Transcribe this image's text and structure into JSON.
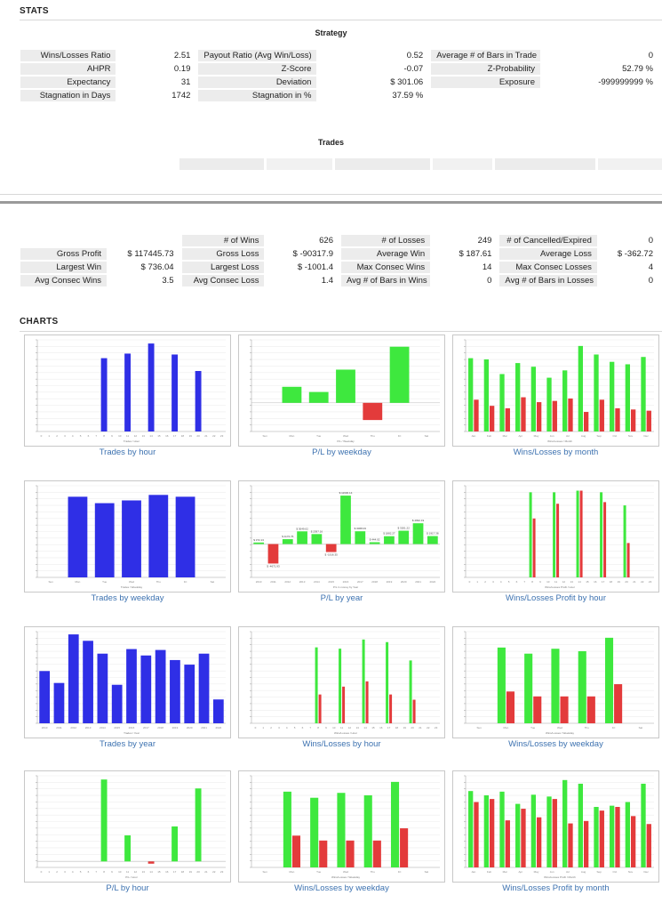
{
  "stats_title": "STATS",
  "strategy_title": "Strategy",
  "strategy_rows": [
    [
      "Wins/Losses Ratio",
      "2.51",
      "Payout Ratio (Avg Win/Loss)",
      "0.52",
      "Average # of Bars in Trade",
      "0"
    ],
    [
      "AHPR",
      "0.19",
      "Z-Score",
      "-0.07",
      "Z-Probability",
      "52.79 %"
    ],
    [
      "Expectancy",
      "31",
      "Deviation",
      "$ 301.06",
      "Exposure",
      "-999999999 %"
    ],
    [
      "Stagnation in Days",
      "1742",
      "Stagnation in %",
      "37.59 %",
      "",
      ""
    ]
  ],
  "trades_title": "Trades",
  "trades_header": [
    "",
    "",
    "# of Wins",
    "626",
    "# of Losses",
    "249",
    "# of Cancelled/Expired",
    "0"
  ],
  "trades_rows": [
    [
      "Gross Profit",
      "$ 117445.73",
      "Gross Loss",
      "$ -90317.9",
      "Average Win",
      "$ 187.61",
      "Average Loss",
      "$ -362.72"
    ],
    [
      "Largest Win",
      "$ 736.04",
      "Largest Loss",
      "$ -1001.4",
      "Max Consec Wins",
      "14",
      "Max Consec Losses",
      "4"
    ],
    [
      "Avg Consec Wins",
      "3.5",
      "Avg Consec Loss",
      "1.4",
      "Avg # of Bars in Wins",
      "0",
      "Avg # of Bars in Losses",
      "0"
    ]
  ],
  "charts_title": "CHARTS",
  "colors": {
    "blue": "#2f2fe6",
    "green": "#3ee83e",
    "red": "#e33b3b",
    "caption": "#3d72b0"
  },
  "chart_data": [
    {
      "caption": "Trades by hour",
      "type": "bar",
      "color": "blue",
      "xlabel": "Trades / Hour",
      "categories": [
        "0",
        "1",
        "2",
        "3",
        "4",
        "5",
        "6",
        "7",
        "8",
        "9",
        "10",
        "11",
        "12",
        "13",
        "14",
        "15",
        "16",
        "17",
        "18",
        "19",
        "20",
        "21",
        "22",
        "23"
      ],
      "values": [
        0,
        0,
        0,
        0,
        0,
        0,
        0,
        0,
        160,
        0,
        0,
        170,
        0,
        0,
        192,
        0,
        0,
        168,
        0,
        0,
        132,
        0,
        0,
        0
      ],
      "ylim": [
        0,
        200
      ]
    },
    {
      "caption": "P/L by weekday",
      "type": "bar",
      "xlabel": "P/L / Weekday",
      "categories": [
        "Sun",
        "Mon",
        "Tue",
        "Wed",
        "Thu",
        "Fri",
        "Sat"
      ],
      "values": [
        0,
        2800,
        1900,
        5800,
        -3000,
        9800,
        0
      ],
      "ylim": [
        -5000,
        11000
      ],
      "posColor": "green",
      "negColor": "red"
    },
    {
      "caption": "Wins/Losses by month",
      "type": "grouped",
      "xlabel": "Wins/Losses / Month",
      "categories": [
        "Jan",
        "Feb",
        "Mar",
        "Apr",
        "May",
        "Jun",
        "Jul",
        "Aug",
        "Sep",
        "Oct",
        "Nov",
        "Dec"
      ],
      "series": [
        {
          "color": "green",
          "values": [
            60,
            59,
            47,
            56,
            53,
            44,
            50,
            70,
            63,
            57,
            55,
            61
          ]
        },
        {
          "color": "red",
          "values": [
            26,
            21,
            19,
            28,
            24,
            25,
            27,
            16,
            26,
            19,
            18,
            17
          ]
        }
      ],
      "ylim": [
        0,
        75
      ]
    },
    {
      "caption": "Trades by weekday",
      "type": "bar",
      "color": "blue",
      "xlabel": "Trades / Weekday",
      "categories": [
        "Sun",
        "Mon",
        "Tue",
        "Wed",
        "Thu",
        "Fri",
        "Sat"
      ],
      "values": [
        0,
        176,
        162,
        168,
        180,
        176,
        0
      ],
      "ylim": [
        0,
        200
      ]
    },
    {
      "caption": "P/L by year",
      "type": "bar",
      "xlabel": "P/L in money by Year",
      "categories": [
        "2010",
        "2011",
        "2012",
        "2013",
        "2014",
        "2015",
        "2016",
        "2017",
        "2018",
        "2019",
        "2020",
        "2021",
        "2022"
      ],
      "values": [
        372.13,
        -4671.93,
        1172.76,
        3049.02,
        2397.16,
        -1916.35,
        11630.14,
        3068.03,
        444.02,
        1882.27,
        3201.22,
        4992.19,
        1917.38
      ],
      "data_labels": [
        "$ 372.13",
        "$ -4671.93",
        "$ 1172.76",
        "$ 3049.02",
        "$ 2397.16",
        "$ -1916.35",
        "$ 11630.14",
        "$ 3068.03",
        "$ 444.02",
        "$ 1882.27",
        "$ 3201.22",
        "$ 4992.19",
        "$ 1917.38"
      ],
      "ylim": [
        -8000,
        14000
      ],
      "posColor": "green",
      "negColor": "red"
    },
    {
      "caption": "Wins/Losses Profit by hour",
      "type": "grouped",
      "xlabel": "Wins/Losses Profit / Hour",
      "categories": [
        "0",
        "1",
        "2",
        "3",
        "4",
        "5",
        "6",
        "7",
        "8",
        "9",
        "10",
        "11",
        "12",
        "13",
        "14",
        "15",
        "16",
        "17",
        "18",
        "19",
        "20",
        "21",
        "22",
        "23"
      ],
      "series": [
        {
          "color": "green",
          "values": [
            0,
            0,
            0,
            0,
            0,
            0,
            0,
            0,
            26000,
            0,
            0,
            26000,
            0,
            0,
            26500,
            0,
            0,
            26000,
            0,
            0,
            22000,
            0,
            0,
            0
          ]
        },
        {
          "color": "red",
          "values": [
            0,
            0,
            0,
            0,
            0,
            0,
            0,
            0,
            18000,
            0,
            0,
            22500,
            0,
            0,
            26500,
            0,
            0,
            23000,
            0,
            0,
            10500,
            0,
            0,
            0
          ]
        }
      ],
      "ylim": [
        0,
        28000
      ]
    },
    {
      "caption": "Trades by year",
      "type": "bar",
      "color": "blue",
      "xlabel": "Trades / Year",
      "categories": [
        "2010",
        "2011",
        "2012",
        "2013",
        "2014",
        "2015",
        "2016",
        "2017",
        "2018",
        "2019",
        "2020",
        "2021",
        "2022"
      ],
      "values": [
        57,
        44,
        97,
        90,
        76,
        42,
        81,
        74,
        80,
        69,
        64,
        76,
        26
      ],
      "ylim": [
        0,
        100
      ]
    },
    {
      "caption": "Wins/Losses by hour",
      "type": "grouped",
      "xlabel": "Wins/Losses / Hour",
      "categories": [
        "0",
        "1",
        "2",
        "3",
        "4",
        "5",
        "6",
        "7",
        "8",
        "9",
        "10",
        "11",
        "12",
        "13",
        "14",
        "15",
        "16",
        "17",
        "18",
        "19",
        "20",
        "21",
        "22",
        "23"
      ],
      "series": [
        {
          "color": "green",
          "values": [
            0,
            0,
            0,
            0,
            0,
            0,
            0,
            0,
            116,
            0,
            0,
            114,
            0,
            0,
            128,
            0,
            0,
            124,
            0,
            0,
            96,
            0,
            0,
            0
          ]
        },
        {
          "color": "red",
          "values": [
            0,
            0,
            0,
            0,
            0,
            0,
            0,
            0,
            44,
            0,
            0,
            56,
            0,
            0,
            64,
            0,
            0,
            44,
            0,
            0,
            36,
            0,
            0,
            0
          ]
        }
      ],
      "ylim": [
        0,
        140
      ]
    },
    {
      "caption": "Wins/Losses by weekday",
      "type": "grouped",
      "xlabel": "Wins/Losses / Weekday",
      "categories": [
        "Sun",
        "Mon",
        "Tue",
        "Wed",
        "Thu",
        "Fri",
        "Sat"
      ],
      "series": [
        {
          "color": "green",
          "values": [
            0,
            124,
            114,
            122,
            118,
            140,
            0
          ]
        },
        {
          "color": "red",
          "values": [
            0,
            52,
            44,
            44,
            44,
            64,
            0
          ]
        }
      ],
      "ylim": [
        0,
        150
      ]
    },
    {
      "caption": "P/L by hour",
      "type": "bar",
      "xlabel": "P/L / Hour",
      "categories": [
        "0",
        "1",
        "2",
        "3",
        "4",
        "5",
        "6",
        "7",
        "8",
        "9",
        "10",
        "11",
        "12",
        "13",
        "14",
        "15",
        "16",
        "17",
        "18",
        "19",
        "20",
        "21",
        "22",
        "23"
      ],
      "values": [
        0,
        0,
        0,
        0,
        0,
        0,
        0,
        0,
        11000,
        0,
        0,
        3500,
        0,
        0,
        -300,
        0,
        0,
        4700,
        0,
        0,
        9800,
        0,
        0,
        0
      ],
      "ylim": [
        -800,
        11500
      ],
      "posColor": "green",
      "negColor": "red"
    },
    {
      "caption": "Wins/Losses by weekday",
      "type": "grouped",
      "xlabel": "Wins/Losses / Weekday",
      "categories": [
        "Sun",
        "Mon",
        "Tue",
        "Wed",
        "Thu",
        "Fri",
        "Sat"
      ],
      "series": [
        {
          "color": "green",
          "values": [
            0,
            124,
            114,
            122,
            118,
            140,
            0
          ]
        },
        {
          "color": "red",
          "values": [
            0,
            52,
            44,
            44,
            44,
            64,
            0
          ]
        }
      ],
      "ylim": [
        0,
        150
      ]
    },
    {
      "caption": "Wins/Losses Profit by month",
      "type": "grouped",
      "xlabel": "Wins/Losses Profit / Month",
      "categories": [
        "Jan",
        "Feb",
        "Mar",
        "Apr",
        "May",
        "Jun",
        "Jul",
        "Aug",
        "Sep",
        "Oct",
        "Nov",
        "Dec"
      ],
      "series": [
        {
          "color": "green",
          "values": [
            12500,
            11800,
            12400,
            10400,
            11900,
            11600,
            14300,
            13700,
            9900,
            10100,
            10700,
            13700
          ]
        },
        {
          "color": "red",
          "values": [
            10700,
            11200,
            7700,
            9600,
            8200,
            11200,
            7200,
            7600,
            9300,
            9900,
            8400,
            7100
          ]
        }
      ],
      "ylim": [
        0,
        15000
      ]
    }
  ]
}
